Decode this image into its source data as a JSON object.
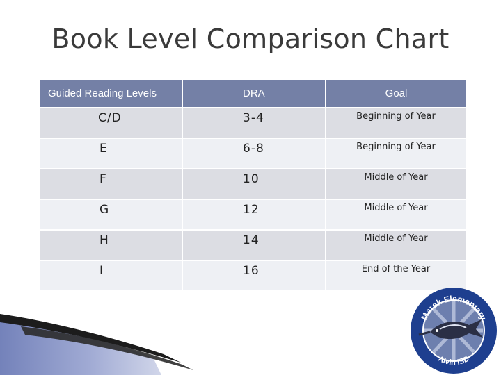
{
  "title": "Book Level Comparison Chart",
  "table": {
    "headers": [
      "Guided Reading Levels",
      "DRA",
      "Goal"
    ],
    "rows": [
      [
        "C/D",
        "3-4",
        "Beginning of Year"
      ],
      [
        "E",
        "6-8",
        "Beginning of Year"
      ],
      [
        "F",
        "10",
        "Middle of Year"
      ],
      [
        "G",
        "12",
        "Middle of Year"
      ],
      [
        "H",
        "14",
        "Middle of Year"
      ],
      [
        "I",
        "16",
        "End of the Year"
      ]
    ]
  },
  "logo": {
    "top_text": "Marek Elementary",
    "bottom_text": "Alvin ISD"
  },
  "colors": {
    "header": "#7480a6",
    "row_odd": "#dcdde3",
    "row_even": "#eef0f4",
    "title": "#3a3a3a",
    "logo_ring": "#1e3f8f"
  }
}
